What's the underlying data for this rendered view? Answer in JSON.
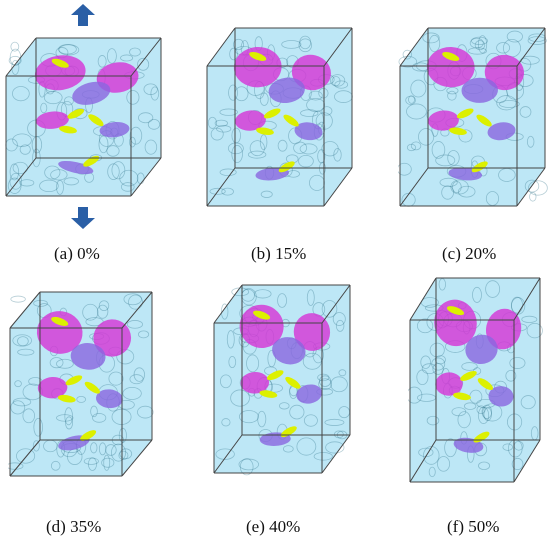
{
  "figure": {
    "panels": [
      {
        "caption": "(a) 0%"
      },
      {
        "caption": "(b) 15%"
      },
      {
        "caption": "(c) 20%"
      },
      {
        "caption": "(d) 35%"
      },
      {
        "caption": "(e) 40%"
      },
      {
        "caption": "(f) 50%"
      }
    ],
    "colors": {
      "cell": "#86d4ee",
      "cell_edge": "#2a6f88",
      "magenta": "#d633d6",
      "purple": "#8a66e0",
      "yellow": "#dcf000",
      "arrow": "#2a5fa6",
      "box_edge": "#444444"
    },
    "icons": [
      "arrow-up-icon",
      "arrow-down-icon"
    ]
  }
}
